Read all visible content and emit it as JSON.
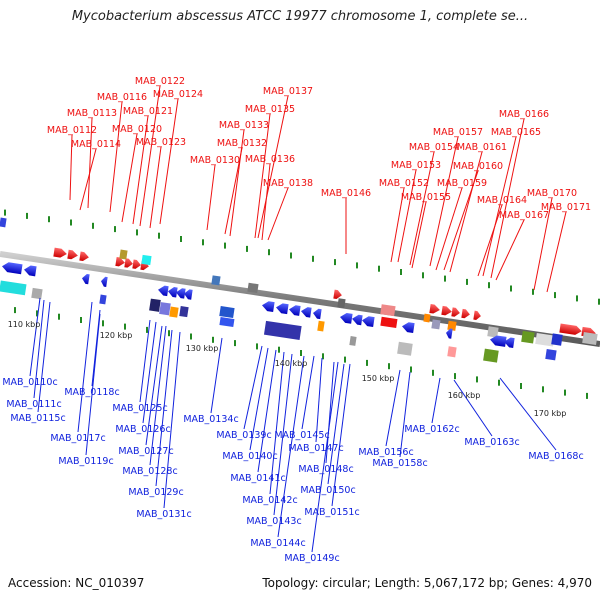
{
  "header": {
    "title": "Mycobacterium abscessus ATCC 19977 chromosome 1, complete se..."
  },
  "footer": {
    "accession": "Accession: NC_010397",
    "summary": "Topology: circular; Length: 5,067,172 bp; Genes: 4,970"
  },
  "colors": {
    "forward": "#ee1111",
    "reverse": "#1122dd",
    "backbone": "#888888",
    "tick": "#228822"
  },
  "scale_labels": [
    "110 kbp",
    "120 kbp",
    "130 kbp",
    "140 kbp",
    "150 kbp",
    "160 kbp",
    "170 kbp"
  ],
  "forward_genes": [
    "MAB_0112",
    "MAB_0113",
    "MAB_0114",
    "MAB_0116",
    "MAB_0120",
    "MAB_0121",
    "MAB_0122",
    "MAB_0123",
    "MAB_0124",
    "MAB_0130",
    "MAB_0132",
    "MAB_0133",
    "MAB_0135",
    "MAB_0136",
    "MAB_0137",
    "MAB_0138",
    "MAB_0146",
    "MAB_0152",
    "MAB_0153",
    "MAB_0154",
    "MAB_0155",
    "MAB_0157",
    "MAB_0159",
    "MAB_0160",
    "MAB_0161",
    "MAB_0164",
    "MAB_0165",
    "MAB_0166",
    "MAB_0167",
    "MAB_0170",
    "MAB_0171"
  ],
  "reverse_genes": [
    "MAB_0110c",
    "MAB_0111c",
    "MAB_0115c",
    "MAB_0117c",
    "MAB_0118c",
    "MAB_0119c",
    "MAB_0125c",
    "MAB_0126c",
    "MAB_0127c",
    "MAB_0128c",
    "MAB_0129c",
    "MAB_0131c",
    "MAB_0134c",
    "MAB_0139c",
    "MAB_0140c",
    "MAB_0141c",
    "MAB_0142c",
    "MAB_0143c",
    "MAB_0144c",
    "MAB_0145c",
    "MAB_0147c",
    "MAB_0148c",
    "MAB_0149c",
    "MAB_0150c",
    "MAB_0151c",
    "MAB_0156c",
    "MAB_0158c",
    "MAB_0162c",
    "MAB_0163c",
    "MAB_0168c"
  ]
}
